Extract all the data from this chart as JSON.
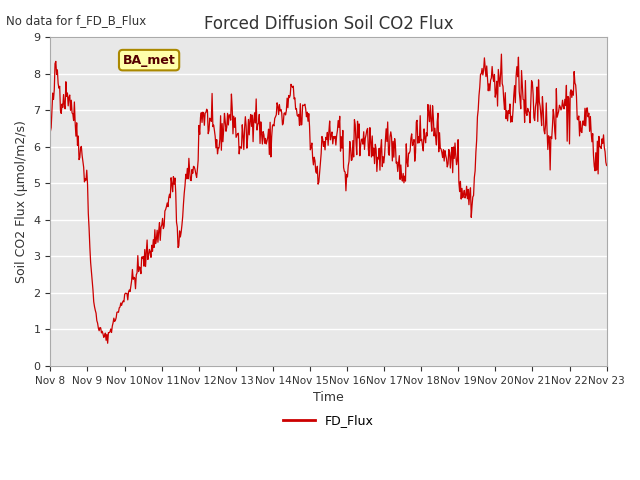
{
  "title": "Forced Diffusion Soil CO2 Flux",
  "xlabel": "Time",
  "ylabel": "Soil CO2 Flux (μmol/m2/s)",
  "no_data_label": "No data for f_FD_B_Flux",
  "legend_label": "FD_Flux",
  "legend_line_color": "#cc0000",
  "plot_bg_color": "#e8e8e8",
  "line_color": "#cc0000",
  "ylim": [
    0.0,
    9.0
  ],
  "yticks": [
    0.0,
    1.0,
    2.0,
    3.0,
    4.0,
    5.0,
    6.0,
    7.0,
    8.0,
    9.0
  ],
  "xtick_labels": [
    "Nov 8",
    "Nov 9",
    "Nov 10",
    "Nov 11",
    "Nov 12",
    "Nov 13",
    "Nov 14",
    "Nov 15",
    "Nov 16",
    "Nov 17",
    "Nov 18",
    "Nov 19",
    "Nov 20",
    "Nov 21",
    "Nov 22",
    "Nov 23"
  ],
  "ba_met_label": "BA_met",
  "ba_met_bg": "#ffffaa",
  "ba_met_border": "#aa8800",
  "title_color": "#333333",
  "axis_label_color": "#333333",
  "tick_color": "#333333",
  "grid_color": "#ffffff",
  "spine_color": "#aaaaaa"
}
